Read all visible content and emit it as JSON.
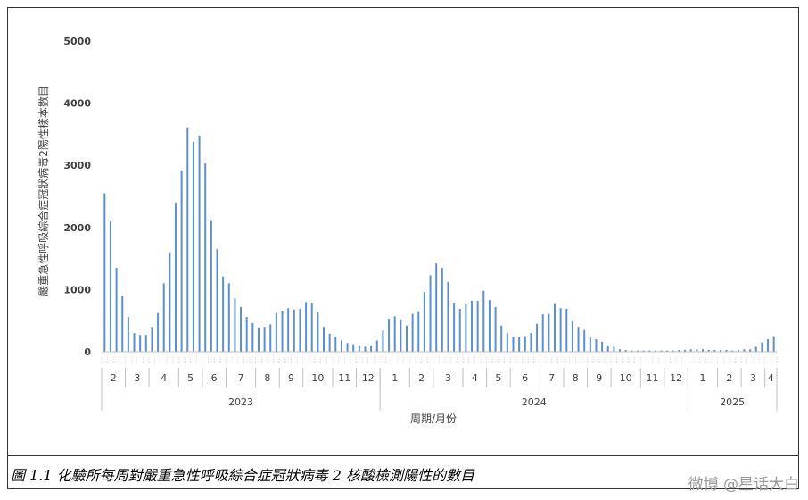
{
  "caption": "圖 1.1  化驗所每周對嚴重急性呼吸綜合症冠狀病毒 2 核酸檢測陽性的數目",
  "watermark": "微博 @星话大白",
  "chart_data": {
    "type": "bar",
    "ylabel": "嚴重急性呼吸綜合症冠狀病毒2陽性樣本數目",
    "xlabel": "周期/月份",
    "ylim": [
      0,
      5000
    ],
    "yticks": [
      0,
      1000,
      2000,
      3000,
      4000,
      5000
    ],
    "bar_color": "#5b8fd4",
    "grid": false,
    "months": [
      {
        "label": "2",
        "weeks": 4
      },
      {
        "label": "3",
        "weeks": 4
      },
      {
        "label": "4",
        "weeks": 5
      },
      {
        "label": "5",
        "weeks": 4
      },
      {
        "label": "6",
        "weeks": 4
      },
      {
        "label": "7",
        "weeks": 5
      },
      {
        "label": "8",
        "weeks": 4
      },
      {
        "label": "9",
        "weeks": 4
      },
      {
        "label": "10",
        "weeks": 5
      },
      {
        "label": "11",
        "weeks": 4
      },
      {
        "label": "12",
        "weeks": 4
      },
      {
        "label": "1",
        "weeks": 5
      },
      {
        "label": "2",
        "weeks": 4
      },
      {
        "label": "3",
        "weeks": 5
      },
      {
        "label": "4",
        "weeks": 4
      },
      {
        "label": "5",
        "weeks": 4
      },
      {
        "label": "6",
        "weeks": 5
      },
      {
        "label": "7",
        "weeks": 4
      },
      {
        "label": "8",
        "weeks": 4
      },
      {
        "label": "9",
        "weeks": 4
      },
      {
        "label": "10",
        "weeks": 5
      },
      {
        "label": "11",
        "weeks": 4
      },
      {
        "label": "12",
        "weeks": 4
      },
      {
        "label": "1",
        "weeks": 5
      },
      {
        "label": "2",
        "weeks": 4
      },
      {
        "label": "3",
        "weeks": 4
      },
      {
        "label": "4",
        "weeks": 2
      }
    ],
    "years": [
      {
        "label": "2023",
        "months": 11
      },
      {
        "label": "2024",
        "months": 12
      },
      {
        "label": "2025",
        "months": 4
      }
    ],
    "values": [
      2550,
      2110,
      1350,
      900,
      560,
      300,
      270,
      270,
      400,
      620,
      1100,
      1600,
      2400,
      2920,
      3610,
      3380,
      3480,
      3030,
      2120,
      1650,
      1210,
      1100,
      860,
      720,
      560,
      460,
      390,
      400,
      440,
      620,
      660,
      700,
      680,
      690,
      800,
      790,
      630,
      400,
      290,
      240,
      180,
      140,
      120,
      100,
      80,
      100,
      180,
      340,
      530,
      570,
      520,
      420,
      610,
      650,
      960,
      1230,
      1420,
      1350,
      1120,
      790,
      690,
      780,
      820,
      820,
      980,
      830,
      720,
      420,
      300,
      240,
      240,
      250,
      300,
      450,
      600,
      610,
      780,
      700,
      690,
      500,
      400,
      350,
      240,
      200,
      160,
      100,
      80,
      40,
      30,
      20,
      20,
      20,
      20,
      20,
      20,
      20,
      20,
      30,
      30,
      40,
      40,
      40,
      30,
      30,
      30,
      30,
      20,
      30,
      40,
      40,
      80,
      150,
      200,
      250
    ]
  }
}
